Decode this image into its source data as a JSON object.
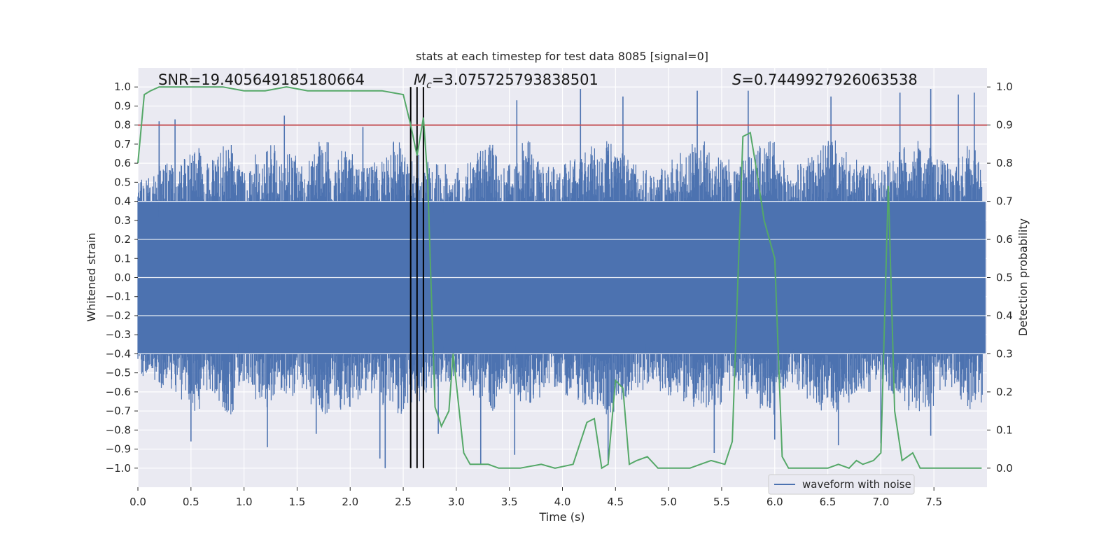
{
  "chart_data": {
    "type": "line",
    "title": "stats at each timestep for test data 8085 [signal=0]",
    "xlabel": "Time (s)",
    "ylabel_left": "Whitened strain",
    "ylabel_right": "Detection probability",
    "xlim": [
      0.0,
      8.0
    ],
    "ylim_left": [
      -1.1,
      1.1
    ],
    "ylim_right": [
      -0.05,
      1.05
    ],
    "xticks": [
      "0.0",
      "0.5",
      "1.0",
      "1.5",
      "2.0",
      "2.5",
      "3.0",
      "3.5",
      "4.0",
      "4.5",
      "5.0",
      "5.5",
      "6.0",
      "6.5",
      "7.0",
      "7.5"
    ],
    "yticks_left": [
      "1.0",
      "0.9",
      "0.8",
      "0.7",
      "0.6",
      "0.5",
      "0.4",
      "0.3",
      "0.2",
      "0.1",
      "0.0",
      "−0.1",
      "−0.2",
      "−0.3",
      "−0.4",
      "−0.5",
      "−0.6",
      "−0.7",
      "−0.8",
      "−0.9",
      "−1.0"
    ],
    "yticks_right": [
      "0.0",
      "0.1",
      "0.2",
      "0.3",
      "0.4",
      "0.5",
      "0.6",
      "0.7",
      "0.8",
      "0.9",
      "1.0"
    ],
    "grid": true,
    "legend": {
      "placement": "lower-center-right",
      "entries": [
        "waveform with noise"
      ]
    },
    "annotations": {
      "snr": "SNR=19.405649185180664",
      "mc_symbol": "M",
      "mc_sub": "c",
      "mc_value": "=3.075725793838501",
      "s_symbol": "S",
      "s_value": "=0.7449927926063538"
    },
    "threshold": {
      "axis": "right",
      "value": 0.9
    },
    "vertical_lines": [
      2.57,
      2.63,
      2.69
    ],
    "series": [
      {
        "name": "waveform with noise",
        "axis": "left",
        "color": "#4c72b0",
        "description_note": "dense noise envelope",
        "envelope_top": [
          0.52,
          0.55,
          0.6,
          0.62,
          0.65,
          0.7,
          0.62,
          0.66,
          0.72,
          0.6,
          0.58,
          0.65,
          0.7,
          0.62,
          0.66,
          0.6,
          0.68,
          0.72,
          0.62,
          0.7,
          0.66,
          0.6,
          0.62,
          0.68,
          0.72,
          0.7,
          0.65,
          0.62,
          0.6,
          0.55,
          0.58,
          0.62,
          0.68,
          0.7,
          0.6,
          0.62,
          0.72,
          0.66,
          0.6,
          0.58,
          0.62,
          0.66,
          0.7,
          0.68,
          0.72,
          0.66,
          0.62,
          0.6,
          0.55,
          0.6,
          0.62,
          0.66,
          0.7,
          0.72,
          0.68,
          0.62,
          0.6,
          0.66,
          0.7,
          0.72,
          0.62,
          0.58,
          0.6,
          0.66,
          0.7,
          0.72,
          0.66,
          0.62,
          0.6,
          0.55,
          0.62,
          0.66,
          0.7,
          0.72,
          0.68,
          0.62,
          0.6,
          0.64,
          0.7,
          0.66
        ],
        "peaks": [
          {
            "x": 0.2,
            "y": 0.82
          },
          {
            "x": 0.35,
            "y": 0.83
          },
          {
            "x": 1.38,
            "y": 0.85
          },
          {
            "x": 2.12,
            "y": 0.79
          },
          {
            "x": 3.57,
            "y": 0.93
          },
          {
            "x": 4.17,
            "y": 0.99
          },
          {
            "x": 4.57,
            "y": 0.95
          },
          {
            "x": 5.27,
            "y": 0.98
          },
          {
            "x": 5.75,
            "y": 0.98
          },
          {
            "x": 6.53,
            "y": 0.95
          },
          {
            "x": 7.18,
            "y": 0.97
          },
          {
            "x": 7.47,
            "y": 0.99
          },
          {
            "x": 7.73,
            "y": 0.96
          },
          {
            "x": 7.88,
            "y": 0.97
          }
        ],
        "troughs": [
          {
            "x": 0.5,
            "y": -0.86
          },
          {
            "x": 1.22,
            "y": -0.89
          },
          {
            "x": 1.68,
            "y": -0.82
          },
          {
            "x": 2.28,
            "y": -0.95
          },
          {
            "x": 2.33,
            "y": -1.0
          },
          {
            "x": 2.83,
            "y": -0.82
          },
          {
            "x": 3.23,
            "y": -0.98
          },
          {
            "x": 3.55,
            "y": -0.93
          },
          {
            "x": 4.43,
            "y": -0.96
          },
          {
            "x": 5.43,
            "y": -0.92
          },
          {
            "x": 6.0,
            "y": -0.85
          },
          {
            "x": 6.6,
            "y": -0.88
          },
          {
            "x": 7.0,
            "y": -0.87
          },
          {
            "x": 7.47,
            "y": -0.83
          }
        ]
      },
      {
        "name": "detection probability",
        "axis": "right",
        "color": "#55a868",
        "x": [
          0.0,
          0.06,
          0.12,
          0.2,
          0.4,
          0.6,
          0.8,
          1.0,
          1.2,
          1.4,
          1.6,
          1.8,
          2.0,
          2.15,
          2.3,
          2.5,
          2.57,
          2.63,
          2.69,
          2.73,
          2.8,
          2.86,
          2.93,
          2.97,
          3.07,
          3.13,
          3.2,
          3.3,
          3.4,
          3.6,
          3.8,
          3.93,
          4.1,
          4.23,
          4.3,
          4.37,
          4.43,
          4.5,
          4.57,
          4.63,
          4.7,
          4.8,
          4.9,
          5.0,
          5.2,
          5.3,
          5.4,
          5.53,
          5.6,
          5.7,
          5.77,
          5.83,
          5.9,
          6.0,
          6.07,
          6.13,
          6.2,
          6.3,
          6.5,
          6.6,
          6.7,
          6.77,
          6.83,
          6.93,
          7.0,
          7.07,
          7.13,
          7.2,
          7.3,
          7.37,
          7.47,
          7.6,
          7.8,
          7.95
        ],
        "y": [
          0.8,
          0.98,
          0.99,
          1.0,
          1.0,
          1.0,
          1.0,
          0.99,
          0.99,
          1.0,
          0.99,
          0.99,
          0.99,
          0.99,
          0.99,
          0.98,
          0.9,
          0.82,
          0.92,
          0.76,
          0.16,
          0.11,
          0.15,
          0.3,
          0.04,
          0.01,
          0.01,
          0.01,
          0.0,
          0.0,
          0.01,
          0.0,
          0.01,
          0.12,
          0.13,
          0.0,
          0.01,
          0.23,
          0.21,
          0.01,
          0.02,
          0.03,
          0.0,
          0.0,
          0.0,
          0.01,
          0.02,
          0.01,
          0.07,
          0.87,
          0.88,
          0.78,
          0.65,
          0.55,
          0.03,
          0.0,
          0.0,
          0.0,
          0.0,
          0.01,
          0.0,
          0.02,
          0.01,
          0.02,
          0.04,
          0.74,
          0.15,
          0.02,
          0.04,
          0.0,
          0.0,
          0.0,
          0.0,
          0.0
        ]
      }
    ]
  }
}
